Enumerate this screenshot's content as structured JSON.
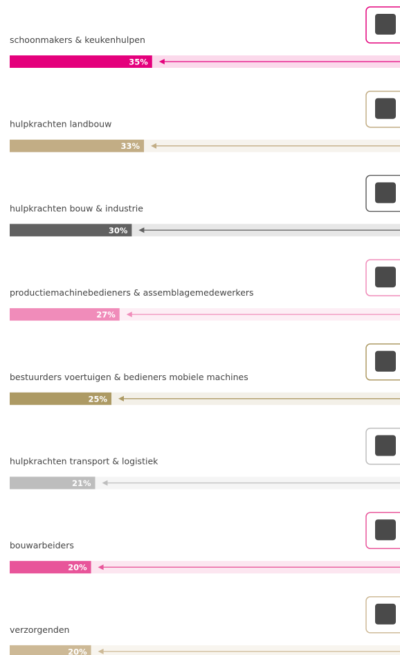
{
  "chart_data": {
    "type": "bar",
    "categories": [
      "schoonmakers & keukenhulpen",
      "hulpkrachten landbouw",
      "hulpkrachten bouw & industrie",
      "productiemachinebedieners & assemblagemedewerkers",
      "bestuurders voertuigen & bedieners mobiele machines",
      "hulpkrachten transport & logistiek",
      "bouwarbeiders",
      "verzorgenden"
    ],
    "values": [
      35,
      33,
      30,
      27,
      25,
      21,
      20,
      20
    ],
    "value_labels": [
      "35%",
      "33%",
      "30%",
      "27%",
      "25%",
      "21%",
      "20%",
      "20%"
    ],
    "colors": [
      "#e4007c",
      "#c2ad85",
      "#616161",
      "#f08cba",
      "#ad9a64",
      "#bdbdbd",
      "#e8559a",
      "#cdb996"
    ]
  }
}
